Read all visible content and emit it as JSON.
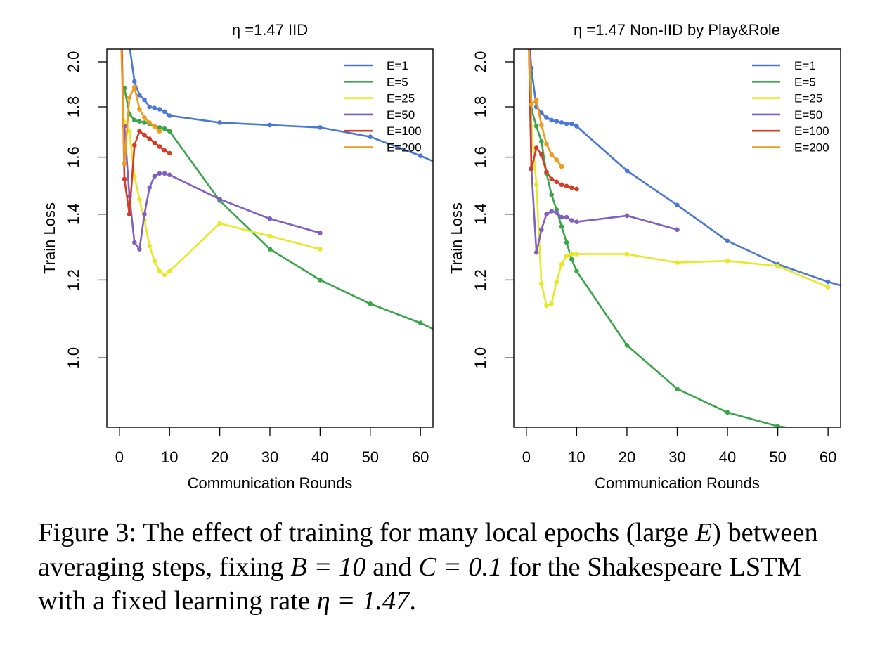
{
  "chart_data": [
    {
      "type": "line",
      "title": "η =1.47 IID",
      "xlabel": "Communication Rounds",
      "ylabel": "Train Loss",
      "xlim": [
        -2.5,
        62.5
      ],
      "ylim": [
        0.85,
        2.06
      ],
      "ylog": true,
      "xticks": [
        "0",
        "10",
        "20",
        "30",
        "40",
        "50",
        "60"
      ],
      "yticks": [
        "1.0",
        "1.2",
        "1.4",
        "1.6",
        "1.8",
        "2.0"
      ],
      "legend_position": "top-right",
      "series": [
        {
          "name": "E=1",
          "color": "#4a78d6",
          "x": [
            1,
            2,
            3,
            4,
            5,
            6,
            7,
            8,
            9,
            10,
            20,
            30,
            40,
            50,
            60,
            62.5
          ],
          "y": [
            2.35,
            2.08,
            1.91,
            1.85,
            1.83,
            1.8,
            1.795,
            1.79,
            1.78,
            1.763,
            1.735,
            1.725,
            1.715,
            1.678,
            1.605,
            1.585
          ]
        },
        {
          "name": "E=5",
          "color": "#3aa64a",
          "x": [
            1,
            2,
            3,
            4,
            5,
            6,
            7,
            8,
            9,
            10,
            20,
            30,
            40,
            50,
            60,
            62.5
          ],
          "y": [
            1.88,
            1.77,
            1.745,
            1.74,
            1.735,
            1.73,
            1.72,
            1.715,
            1.71,
            1.7,
            1.445,
            1.29,
            1.2,
            1.135,
            1.085,
            1.07
          ]
        },
        {
          "name": "E=25",
          "color": "#e8e82a",
          "x": [
            0.9,
            2,
            3,
            4,
            5,
            6,
            7,
            8,
            9,
            10,
            20,
            30,
            40
          ],
          "y": [
            1.75,
            1.7,
            1.53,
            1.45,
            1.38,
            1.3,
            1.255,
            1.225,
            1.215,
            1.225,
            1.37,
            1.33,
            1.29
          ]
        },
        {
          "name": "E=50",
          "color": "#7f5fc4",
          "x": [
            1,
            2,
            3,
            4,
            5,
            6,
            7,
            8,
            9,
            10,
            20,
            30,
            40
          ],
          "y": [
            1.72,
            1.46,
            1.31,
            1.29,
            1.4,
            1.49,
            1.53,
            1.54,
            1.54,
            1.535,
            1.45,
            1.385,
            1.34
          ]
        },
        {
          "name": "E=100",
          "color": "#d43c26",
          "x": [
            0.5,
            1,
            2,
            3,
            4,
            5,
            6,
            7,
            8,
            9,
            10
          ],
          "y": [
            2.06,
            1.52,
            1.4,
            1.645,
            1.7,
            1.685,
            1.67,
            1.655,
            1.64,
            1.625,
            1.615
          ]
        },
        {
          "name": "E=200",
          "color": "#f29a1c",
          "x": [
            0.4,
            1,
            2,
            3,
            4,
            5,
            6,
            7,
            8
          ],
          "y": [
            2.06,
            1.575,
            1.84,
            1.885,
            1.79,
            1.755,
            1.735,
            1.72,
            1.7
          ]
        }
      ]
    },
    {
      "type": "line",
      "title": "η =1.47 Non-IID by Play&Role",
      "xlabel": "Communication Rounds",
      "ylabel": "Train Loss",
      "xlim": [
        -2.5,
        62.5
      ],
      "ylim": [
        0.85,
        2.06
      ],
      "ylog": true,
      "xticks": [
        "0",
        "10",
        "20",
        "30",
        "40",
        "50",
        "60"
      ],
      "yticks": [
        "1.0",
        "1.2",
        "1.4",
        "1.6",
        "1.8",
        "2.0"
      ],
      "legend_position": "top-right",
      "series": [
        {
          "name": "E=1",
          "color": "#4a78d6",
          "x": [
            0.7,
            1,
            2,
            3,
            4,
            5,
            6,
            7,
            8,
            9,
            10,
            20,
            30,
            40,
            50,
            60,
            62.5
          ],
          "y": [
            2.06,
            1.97,
            1.8,
            1.775,
            1.755,
            1.745,
            1.74,
            1.735,
            1.73,
            1.73,
            1.72,
            1.55,
            1.43,
            1.315,
            1.245,
            1.195,
            1.185
          ]
        },
        {
          "name": "E=5",
          "color": "#3aa64a",
          "x": [
            0.8,
            1,
            2,
            3,
            4,
            5,
            6,
            7,
            8,
            9,
            10,
            20,
            30,
            40,
            50,
            51.5
          ],
          "y": [
            2.06,
            1.79,
            1.72,
            1.66,
            1.54,
            1.465,
            1.415,
            1.36,
            1.31,
            1.26,
            1.225,
            1.03,
            0.93,
            0.88,
            0.852,
            0.85
          ]
        },
        {
          "name": "E=25",
          "color": "#e8e82a",
          "x": [
            0.6,
            1,
            2,
            3,
            4,
            5,
            6,
            7,
            8,
            9,
            10,
            20,
            30,
            40,
            50,
            60
          ],
          "y": [
            2.06,
            1.72,
            1.5,
            1.19,
            1.13,
            1.135,
            1.195,
            1.245,
            1.27,
            1.275,
            1.275,
            1.275,
            1.25,
            1.255,
            1.24,
            1.18
          ]
        },
        {
          "name": "E=50",
          "color": "#7f5fc4",
          "x": [
            0.7,
            1,
            2,
            3,
            4,
            5,
            6,
            7,
            8,
            9,
            10,
            20,
            30
          ],
          "y": [
            2.06,
            1.56,
            1.28,
            1.35,
            1.4,
            1.41,
            1.405,
            1.39,
            1.39,
            1.38,
            1.375,
            1.395,
            1.35
          ]
        },
        {
          "name": "E=100",
          "color": "#d43c26",
          "x": [
            0.5,
            1,
            2,
            3,
            4,
            5,
            6,
            7,
            8,
            9,
            10
          ],
          "y": [
            2.06,
            1.555,
            1.635,
            1.61,
            1.545,
            1.52,
            1.51,
            1.5,
            1.495,
            1.49,
            1.485
          ]
        },
        {
          "name": "E=200",
          "color": "#f29a1c",
          "x": [
            0.5,
            1,
            2,
            3,
            4,
            5,
            6,
            7
          ],
          "y": [
            2.06,
            1.81,
            1.83,
            1.725,
            1.65,
            1.61,
            1.59,
            1.565
          ]
        }
      ]
    }
  ],
  "caption": {
    "label": "Figure 3: The effect of training for many local epochs (large ",
    "var_e": "E",
    "text2": ") between averaging steps, fixing ",
    "eq_b": "B = 10",
    "text3": " and ",
    "eq_c": "C = 0.1",
    "text4": " for the Shakespeare LSTM with a fixed learning rate ",
    "eq_eta": "η = 1.47",
    "text5": "."
  }
}
